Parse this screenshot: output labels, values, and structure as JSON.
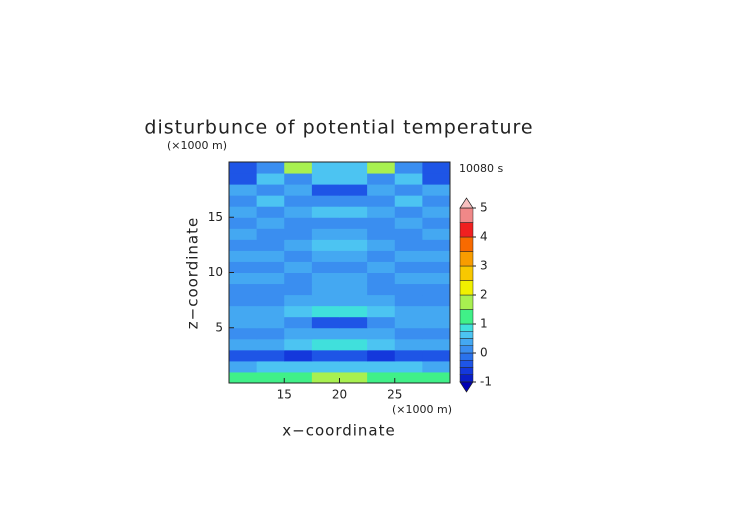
{
  "chart_data": {
    "type": "contour",
    "title": "disturbunce of potential temperature",
    "xlabel": "x−coordinate",
    "ylabel": "z−coordinate",
    "xunit": "(×1000 m)",
    "yunit": "(×1000 m)",
    "annotation": "10080 s",
    "x": [
      11.25,
      13.75,
      16.25,
      18.75,
      21.25,
      23.75,
      26.25,
      28.75
    ],
    "y": [
      0.5,
      1.5,
      2.5,
      3.5,
      4.5,
      5.5,
      6.5,
      7.5,
      8.5,
      9.5,
      10.5,
      11.5,
      12.5,
      13.5,
      14.5,
      15.5,
      16.5,
      17.5,
      18.5,
      19.5
    ],
    "values": [
      [
        1.25,
        1.25,
        1.25,
        1.5,
        1.5,
        1.25,
        1.25,
        1.25
      ],
      [
        0.25,
        0.5,
        0.5,
        0.5,
        0.5,
        0.5,
        0.5,
        0.25
      ],
      [
        -0.5,
        -0.5,
        -0.75,
        -0.5,
        -0.5,
        -0.75,
        -0.5,
        -0.5
      ],
      [
        0.25,
        0.25,
        0.5,
        0.75,
        0.75,
        0.5,
        0.25,
        0.25
      ],
      [
        0,
        0,
        0.25,
        0.25,
        0.25,
        0.25,
        0,
        0
      ],
      [
        0.25,
        0.25,
        0,
        -0.5,
        -0.5,
        0,
        0.25,
        0.25
      ],
      [
        0.25,
        0.25,
        0.5,
        0.75,
        0.75,
        0.5,
        0.25,
        0.25
      ],
      [
        0,
        0,
        0.25,
        0.25,
        0.25,
        0.25,
        0,
        0
      ],
      [
        0,
        0,
        0,
        0.25,
        0.25,
        0,
        0,
        0
      ],
      [
        0.25,
        0.25,
        0,
        0.25,
        0.25,
        0,
        0.25,
        0.25
      ],
      [
        0,
        0,
        0.25,
        0,
        0,
        0.25,
        0,
        0
      ],
      [
        0.25,
        0.25,
        0,
        0.25,
        0.25,
        0,
        0.25,
        0.25
      ],
      [
        0,
        0,
        0.25,
        0.5,
        0.5,
        0.25,
        0,
        0
      ],
      [
        0.25,
        0,
        0,
        0.25,
        0.25,
        0,
        0,
        0.25
      ],
      [
        0,
        0.25,
        0,
        0,
        0,
        0,
        0.25,
        0
      ],
      [
        0.25,
        0,
        0.25,
        0.5,
        0.5,
        0.25,
        0,
        0.25
      ],
      [
        0,
        0.5,
        0,
        0,
        0,
        0,
        0.5,
        0
      ],
      [
        0.25,
        0,
        0.25,
        -0.5,
        -0.5,
        0.25,
        0,
        0.25
      ],
      [
        -0.5,
        0.5,
        0,
        0.5,
        0.5,
        0,
        0.5,
        -0.5
      ],
      [
        -0.5,
        0,
        1.5,
        0.5,
        0.5,
        1.5,
        0,
        -0.5
      ]
    ],
    "levels": [
      -1,
      -0.75,
      -0.5,
      -0.25,
      0,
      0.25,
      0.5,
      0.75,
      1,
      1.5,
      2,
      2.5,
      3,
      3.5,
      4,
      4.5,
      5
    ],
    "colors": [
      "#0a1ec8",
      "#1438dc",
      "#1e55e6",
      "#2a72ec",
      "#3a8ef0",
      "#44a8f2",
      "#4cc4f2",
      "#40e0dc",
      "#40f088",
      "#a8f050",
      "#f0f000",
      "#f8c800",
      "#f89c00",
      "#f86a00",
      "#f02020",
      "#f08888"
    ],
    "under_color": "#0000b4",
    "over_color": "#f8c0c0",
    "xlim": [
      10,
      30
    ],
    "ylim": [
      0,
      20
    ],
    "xticks": [
      15,
      20,
      25
    ],
    "yticks": [
      5,
      10,
      15
    ],
    "colorbar_ticks": [
      -1,
      0,
      1,
      2,
      3,
      4,
      5
    ]
  }
}
